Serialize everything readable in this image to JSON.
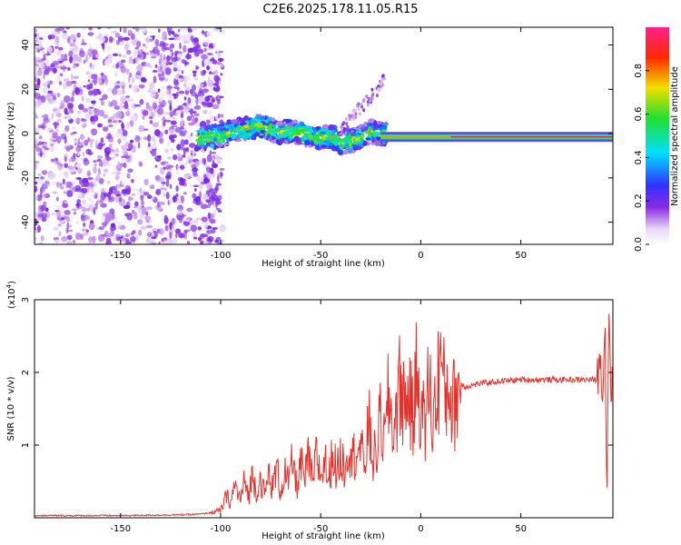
{
  "title": "C2E6.2025.178.11.05.R15",
  "colors": {
    "snr_line": "#e8302a",
    "ridge": "#ff1f3a",
    "scatter": "#8a2be2"
  },
  "chart_data": [
    {
      "type": "heatmap",
      "xlabel": "Height of straight line (km)",
      "ylabel": "Frequency (Hz)",
      "xlim": [
        -193,
        96
      ],
      "ylim": [
        -50,
        48
      ],
      "xticks": [
        -150,
        -100,
        -50,
        0,
        50
      ],
      "xtick_labels": [
        "-150",
        "-100",
        "-50",
        "0",
        "50"
      ],
      "yticks": [
        -40,
        -20,
        0,
        20,
        40
      ],
      "ytick_labels": [
        "-40",
        "-20",
        "0",
        "20",
        "40"
      ],
      "colorbar": {
        "label": "Normalized spectral amplitude",
        "range": [
          0,
          1
        ],
        "ticks": [
          0.0,
          0.2,
          0.4,
          0.6,
          0.8
        ],
        "tick_labels": [
          "0.0",
          "0.2",
          "0.4",
          "0.6",
          "0.8"
        ],
        "colormap": "rainbow (white-purple-blue-cyan-green-yellow-red-magenta)"
      },
      "regions": {
        "broadband_noise": {
          "x_from": -193,
          "x_to": -107,
          "freq_from": -50,
          "freq_to": 48
        },
        "signal_band_center_hz": 0,
        "strong_constant_ridge": {
          "x_from": -20,
          "x_to": 96,
          "freq_hz": -1.5
        }
      },
      "ridge_trace": {
        "x": [
          -110,
          -100,
          -95,
          -90,
          -85,
          -80,
          -75,
          -70,
          -65,
          -60,
          -55,
          -50,
          -45,
          -40,
          -35,
          -30,
          -25,
          -22,
          -20,
          -15,
          -10,
          -5,
          0,
          5,
          10,
          20,
          40,
          60,
          80,
          93
        ],
        "freq": [
          -2,
          -1,
          1,
          2,
          2.5,
          3,
          2,
          0,
          1,
          0,
          -1,
          -2,
          -1,
          -4,
          -3,
          -2,
          1,
          0,
          0,
          0,
          0,
          0,
          -2,
          -1,
          -1.5,
          -1.5,
          -1.5,
          -1.5,
          -1.5,
          -1.5
        ]
      }
    },
    {
      "type": "line",
      "xlabel": "Height of straight line (km)",
      "ylabel": "SNR (10 * v/v)",
      "y_multiplier_label": "(x10",
      "y_multiplier_exp": "4",
      "xlim": [
        -193,
        96
      ],
      "ylim": [
        0,
        3
      ],
      "xticks": [
        -150,
        -100,
        -50,
        0,
        50
      ],
      "xtick_labels": [
        "-150",
        "-100",
        "-50",
        "0",
        "50"
      ],
      "yticks": [
        1,
        2,
        3
      ],
      "ytick_labels": [
        "1",
        "2",
        "3"
      ],
      "series": [
        {
          "x": [
            -193,
            -150,
            -120,
            -110,
            -105,
            -100,
            -97,
            -95,
            -93,
            -90,
            -88,
            -86,
            -84,
            -82,
            -80,
            -78,
            -76,
            -74,
            -72,
            -70,
            -68,
            -66,
            -64,
            -62,
            -60,
            -58,
            -56,
            -54,
            -52,
            -50,
            -48,
            -46,
            -44,
            -42,
            -40,
            -38,
            -36,
            -34,
            -32,
            -30,
            -28,
            -26,
            -24,
            -22,
            -20,
            -18,
            -16,
            -14,
            -12,
            -10,
            -8,
            -6,
            -4,
            -2,
            0,
            2,
            4,
            6,
            8,
            10,
            12,
            14,
            16,
            18,
            20,
            22,
            25,
            30,
            40,
            50,
            60,
            70,
            80,
            88,
            90,
            91,
            92,
            93,
            94,
            95,
            96
          ],
          "y": [
            0.03,
            0.03,
            0.04,
            0.05,
            0.07,
            0.1,
            0.3,
            0.2,
            0.45,
            0.25,
            0.5,
            0.3,
            0.6,
            0.35,
            0.55,
            0.3,
            0.6,
            0.4,
            0.7,
            0.35,
            0.65,
            0.45,
            0.8,
            0.4,
            0.75,
            0.5,
            0.85,
            0.45,
            0.9,
            0.55,
            0.8,
            0.5,
            0.95,
            0.6,
            0.85,
            0.7,
            1.1,
            0.8,
            1.0,
            0.9,
            0.75,
            1.3,
            0.8,
            0.9,
            1.4,
            1.0,
            1.7,
            1.2,
            1.5,
            1.9,
            1.5,
            1.8,
            1.3,
            2.0,
            1.6,
            1.2,
            1.9,
            1.3,
            1.7,
            2.25,
            1.6,
            1.9,
            1.5,
            1.75,
            1.85,
            1.8,
            1.82,
            1.85,
            1.88,
            1.9,
            1.9,
            1.9,
            1.9,
            1.9,
            2.2,
            1.7,
            2.8,
            0.3,
            2.9,
            1.8,
            1.9
          ]
        }
      ]
    }
  ]
}
